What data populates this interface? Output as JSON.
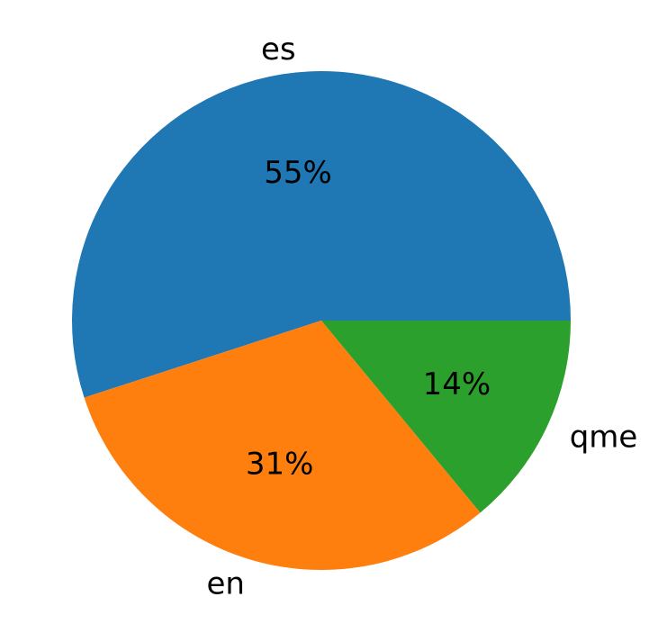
{
  "chart_data": {
    "type": "pie",
    "categories": [
      "es",
      "en",
      "qme"
    ],
    "values": [
      55,
      31,
      14
    ],
    "value_labels": [
      "55%",
      "31%",
      "14%"
    ],
    "colors": [
      "#1f77b4",
      "#ff7f0e",
      "#2ca02c"
    ],
    "start_angle_deg": 0,
    "direction": "counterclockwise",
    "legend": "none"
  }
}
